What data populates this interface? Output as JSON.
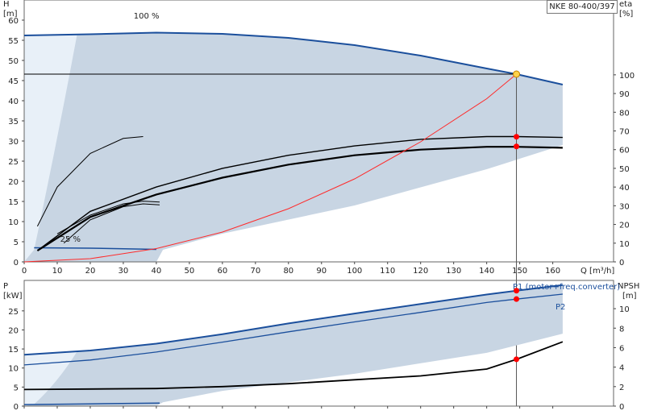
{
  "model_label": "NKE 80-400/397",
  "colors": {
    "envelope": "#c8d5e3",
    "envelope_light": "#e8f0f8",
    "curve_blue": "#1b4f9c",
    "efficiency": "#ff2a2a",
    "op_point": "#ff0000",
    "duty": "#ffd24a"
  },
  "chart_data": [
    {
      "type": "line",
      "panel": "head-efficiency",
      "left_axis": {
        "label_line1": "H",
        "label_line2": "[m]",
        "range": [
          0,
          65
        ],
        "ticks": [
          0,
          5,
          10,
          15,
          20,
          25,
          30,
          35,
          40,
          45,
          50,
          55,
          60
        ]
      },
      "right_axis": {
        "label_line1": "eta",
        "label_line2": "[%]",
        "range": [
          0,
          140
        ],
        "ticks": [
          0,
          10,
          20,
          30,
          40,
          50,
          60,
          70,
          80,
          90,
          100
        ]
      },
      "x_axis": {
        "label": "Q [m³/h]",
        "range": [
          0,
          170
        ],
        "ticks": [
          0,
          10,
          20,
          30,
          40,
          50,
          60,
          70,
          80,
          90,
          100,
          110,
          120,
          130,
          140,
          150,
          160
        ]
      },
      "annotations": {
        "max_speed": "100 %",
        "min_speed": "25 %"
      },
      "head_100": {
        "x": [
          0,
          20,
          40,
          60,
          80,
          100,
          120,
          140,
          149,
          163
        ],
        "y": [
          56.2,
          56.5,
          56.9,
          56.6,
          55.6,
          53.8,
          51.2,
          48.0,
          46.6,
          44.0
        ]
      },
      "head_25": {
        "x": [
          3,
          20,
          40
        ],
        "y": [
          3.5,
          3.4,
          3.1
        ]
      },
      "eta_primary": {
        "x": [
          4,
          20,
          40,
          60,
          80,
          100,
          120,
          140,
          149,
          163
        ],
        "y": [
          6,
          24,
          36,
          45,
          52,
          57,
          60,
          61.5,
          61.5,
          61
        ]
      },
      "eta_secondary": {
        "x": [
          4,
          20,
          40,
          60,
          80,
          100,
          120,
          140,
          149,
          163
        ],
        "y": [
          6,
          27,
          40,
          50,
          57,
          62,
          65.5,
          67,
          67,
          66.5
        ]
      },
      "eta_low_speed_1": {
        "x": [
          10,
          20,
          30,
          36,
          41
        ],
        "y": [
          15,
          25,
          31,
          32.5,
          32
        ]
      },
      "eta_low_speed_2": {
        "x": [
          12,
          20,
          30,
          36,
          41
        ],
        "y": [
          10,
          22.5,
          29.5,
          31,
          30.5
        ]
      },
      "eta_low_speed_3": {
        "x": [
          4,
          10,
          20,
          30,
          36
        ],
        "y": [
          19,
          40,
          58,
          66,
          67
        ]
      },
      "system_curve": {
        "x": [
          0,
          20,
          40,
          60,
          80,
          100,
          120,
          140,
          149
        ],
        "y": [
          0,
          0.8,
          3.3,
          7.4,
          13.2,
          20.6,
          29.8,
          40.5,
          46.6
        ]
      },
      "duty_point": {
        "x": 149,
        "y": 46.6
      },
      "eta_points": [
        {
          "x": 149,
          "y": 61.7
        },
        {
          "x": 149,
          "y": 66.9
        }
      ]
    },
    {
      "type": "line",
      "panel": "power-npsh",
      "left_axis": {
        "label_line1": "P",
        "label_line2": "[kW]",
        "range": [
          0,
          33
        ],
        "ticks": [
          0,
          5,
          10,
          15,
          20,
          25
        ]
      },
      "right_axis": {
        "label_line1": "NPSH",
        "label_line2": "[m]",
        "range": [
          0,
          12.9
        ],
        "ticks": [
          0,
          2,
          4,
          6,
          8,
          10
        ]
      },
      "series": [
        {
          "name": "P1 (motor+freq.converter)",
          "x": [
            0,
            20,
            40,
            60,
            80,
            100,
            120,
            140,
            149,
            163
          ],
          "y": [
            13.5,
            14.6,
            16.4,
            18.9,
            21.7,
            24.3,
            26.8,
            29.3,
            30.3,
            31.8
          ]
        },
        {
          "name": "P2",
          "x": [
            0,
            20,
            40,
            60,
            80,
            100,
            120,
            140,
            149,
            163
          ],
          "y": [
            10.8,
            12.1,
            14.2,
            16.8,
            19.5,
            22.1,
            24.6,
            27.2,
            28.1,
            29.4
          ]
        }
      ],
      "npsh": {
        "x": [
          0,
          20,
          40,
          60,
          80,
          100,
          120,
          140,
          149,
          163
        ],
        "y": [
          1.7,
          1.75,
          1.8,
          2.0,
          2.3,
          2.7,
          3.1,
          3.8,
          4.8,
          6.6
        ]
      },
      "min_speed_power": {
        "x": [
          0,
          20,
          41
        ],
        "y": [
          0.4,
          0.6,
          0.8
        ]
      },
      "op_points": [
        {
          "x": 149,
          "y": 30.3
        },
        {
          "x": 149,
          "y": 28.1
        },
        {
          "x": 149,
          "y": 12.3
        }
      ]
    }
  ]
}
